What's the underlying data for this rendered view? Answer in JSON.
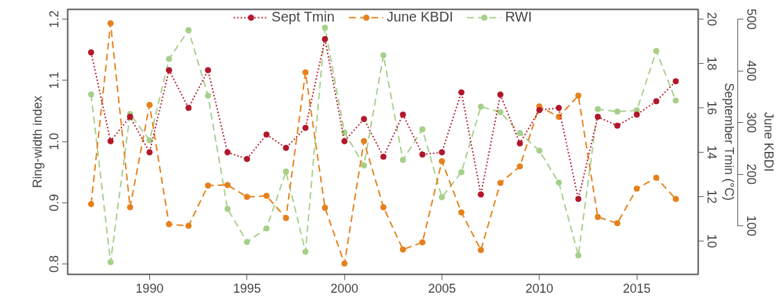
{
  "chart_data": {
    "type": "line",
    "xlim": [
      1985.8,
      2018.15
    ],
    "xticks": [
      1990,
      1995,
      2000,
      2005,
      2010,
      2015
    ],
    "ylabel": "Ring-width index",
    "y2label": "September Tmin (°C)",
    "y3label": "June KBDI",
    "ylim": [
      0.783,
      1.216
    ],
    "yticks": [
      0.8,
      {
        "value": 0.9,
        "label": "0.9"
      },
      {
        "value": 1.0,
        "label": "1.0"
      },
      {
        "value": 1.1,
        "label": "1.1"
      },
      1.2
    ],
    "y2lim": [
      8.5,
      20.44
    ],
    "y2ticks": [
      10,
      12,
      14,
      16,
      18,
      20
    ],
    "y3lim": [
      6,
      519
    ],
    "y3ticks": [
      100,
      200,
      300,
      400,
      500
    ],
    "x": [
      1987,
      1988,
      1989,
      1990,
      1991,
      1992,
      1993,
      1994,
      1995,
      1996,
      1997,
      1998,
      1999,
      2000,
      2001,
      2002,
      2003,
      2004,
      2005,
      2006,
      2007,
      2008,
      2009,
      2010,
      2011,
      2012,
      2013,
      2014,
      2015,
      2016,
      2017
    ],
    "grid": false,
    "legend": "top",
    "marker": "circle",
    "series": [
      {
        "name": "Sept Tmin",
        "color": "#b2182b",
        "axis": "y2",
        "line_style": "dotted",
        "values": [
          18.5,
          14.5,
          15.6,
          14.0,
          17.7,
          16.0,
          17.7,
          14.0,
          13.7,
          14.8,
          14.2,
          15.1,
          19.1,
          14.5,
          15.5,
          13.8,
          15.7,
          13.9,
          14.0,
          16.7,
          12.1,
          16.6,
          14.4,
          15.9,
          16.0,
          11.9,
          15.6,
          15.2,
          15.7,
          16.3,
          17.2
        ]
      },
      {
        "name": "June KBDI",
        "color": "#e6801a",
        "axis": "y3",
        "line_style": "dashed",
        "values": [
          142,
          492,
          136,
          334,
          103,
          100,
          178,
          179,
          156,
          158,
          115,
          397,
          135,
          27,
          264,
          136,
          54,
          68,
          225,
          126,
          53,
          183,
          215,
          331,
          311,
          352,
          117,
          105,
          172,
          193,
          152
        ]
      },
      {
        "name": "RWI",
        "color": "#a6d08a",
        "line_style": "dashed",
        "values": [
          1.077,
          0.803,
          1.045,
          1.002,
          1.135,
          1.182,
          1.075,
          0.89,
          0.836,
          0.858,
          0.951,
          0.82,
          1.186,
          1.015,
          0.961,
          1.141,
          0.97,
          1.02,
          0.909,
          0.95,
          1.057,
          1.048,
          1.014,
          0.985,
          0.933,
          0.814,
          1.053,
          1.049,
          1.051,
          1.148,
          1.067
        ]
      }
    ]
  }
}
